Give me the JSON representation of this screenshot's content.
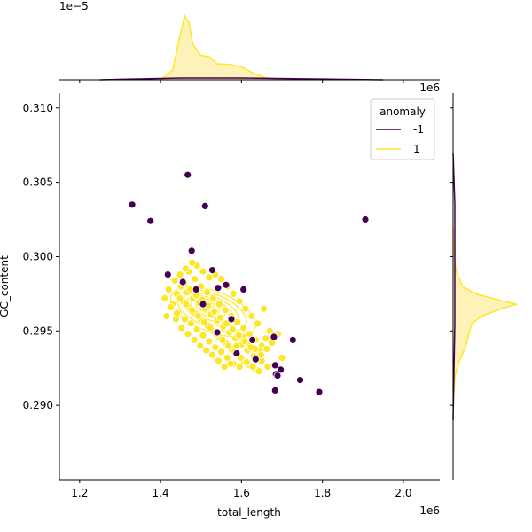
{
  "chart_data": {
    "type": "scatter",
    "xlabel": "total_length",
    "ylabel": "GC_content",
    "x_offset_label": "1e6",
    "top_offset_label": "1e−5",
    "right_offset_label": "1e6",
    "xlim": [
      1.15,
      2.09
    ],
    "ylim": [
      0.285,
      0.311
    ],
    "x_ticks": [
      {
        "value": 1.2,
        "label": "1.2"
      },
      {
        "value": 1.4,
        "label": "1.4"
      },
      {
        "value": 1.6,
        "label": "1.6"
      },
      {
        "value": 1.8,
        "label": "1.8"
      },
      {
        "value": 2.0,
        "label": "2.0"
      }
    ],
    "y_ticks": [
      {
        "value": 0.29,
        "label": "0.290"
      },
      {
        "value": 0.295,
        "label": "0.295"
      },
      {
        "value": 0.3,
        "label": "0.300"
      },
      {
        "value": 0.305,
        "label": "0.305"
      },
      {
        "value": 0.31,
        "label": "0.310"
      }
    ],
    "legend": {
      "title": "anomaly",
      "placement": "top-right",
      "entries": [
        {
          "label": "-1",
          "color": "#440154"
        },
        {
          "label": "1",
          "color": "#fde725"
        }
      ]
    },
    "colors": {
      "anomaly": "#440154",
      "normal": "#fde725",
      "kde_fill": "#fdf3b8"
    },
    "series": [
      {
        "name": "-1",
        "color": "#440154",
        "points": [
          [
            1.467,
            0.3055
          ],
          [
            1.33,
            0.3035
          ],
          [
            1.375,
            0.3024
          ],
          [
            1.51,
            0.3034
          ],
          [
            1.906,
            0.3025
          ],
          [
            1.477,
            0.3004
          ],
          [
            1.418,
            0.2988
          ],
          [
            1.528,
            0.2991
          ],
          [
            1.455,
            0.2983
          ],
          [
            1.488,
            0.2978
          ],
          [
            1.505,
            0.2968
          ],
          [
            1.562,
            0.2981
          ],
          [
            1.605,
            0.2978
          ],
          [
            1.542,
            0.2979
          ],
          [
            1.68,
            0.2946
          ],
          [
            1.727,
            0.2944
          ],
          [
            1.683,
            0.2927
          ],
          [
            1.697,
            0.2924
          ],
          [
            1.685,
            0.2921
          ],
          [
            1.689,
            0.292
          ],
          [
            1.745,
            0.2917
          ],
          [
            1.683,
            0.291
          ],
          [
            1.792,
            0.2909
          ],
          [
            1.588,
            0.2935
          ],
          [
            1.627,
            0.2944
          ],
          [
            1.635,
            0.2931
          ],
          [
            1.54,
            0.2949
          ],
          [
            1.575,
            0.2958
          ]
        ]
      },
      {
        "name": "1",
        "color": "#fde725",
        "points": [
          [
            1.47,
            0.299
          ],
          [
            1.485,
            0.2985
          ],
          [
            1.5,
            0.298
          ],
          [
            1.515,
            0.2976
          ],
          [
            1.53,
            0.2972
          ],
          [
            1.545,
            0.2968
          ],
          [
            1.56,
            0.2964
          ],
          [
            1.575,
            0.296
          ],
          [
            1.59,
            0.2956
          ],
          [
            1.605,
            0.2952
          ],
          [
            1.62,
            0.2948
          ],
          [
            1.635,
            0.2944
          ],
          [
            1.65,
            0.294
          ],
          [
            1.44,
            0.2975
          ],
          [
            1.455,
            0.297
          ],
          [
            1.47,
            0.2966
          ],
          [
            1.485,
            0.2962
          ],
          [
            1.5,
            0.2958
          ],
          [
            1.515,
            0.2954
          ],
          [
            1.53,
            0.295
          ],
          [
            1.545,
            0.2946
          ],
          [
            1.56,
            0.2942
          ],
          [
            1.575,
            0.2938
          ],
          [
            1.59,
            0.2934
          ],
          [
            1.605,
            0.293
          ],
          [
            1.62,
            0.2927
          ],
          [
            1.635,
            0.2924
          ],
          [
            1.65,
            0.293
          ],
          [
            1.43,
            0.2968
          ],
          [
            1.445,
            0.2963
          ],
          [
            1.46,
            0.2958
          ],
          [
            1.475,
            0.2955
          ],
          [
            1.49,
            0.2951
          ],
          [
            1.505,
            0.2947
          ],
          [
            1.52,
            0.2943
          ],
          [
            1.535,
            0.2939
          ],
          [
            1.55,
            0.2936
          ],
          [
            1.565,
            0.2932
          ],
          [
            1.58,
            0.2928
          ],
          [
            1.595,
            0.2926
          ],
          [
            1.42,
            0.2978
          ],
          [
            1.435,
            0.2984
          ],
          [
            1.45,
            0.298
          ],
          [
            1.465,
            0.2976
          ],
          [
            1.48,
            0.2972
          ],
          [
            1.495,
            0.2969
          ],
          [
            1.51,
            0.2965
          ],
          [
            1.525,
            0.2961
          ],
          [
            1.54,
            0.2957
          ],
          [
            1.555,
            0.2953
          ],
          [
            1.57,
            0.2949
          ],
          [
            1.585,
            0.2945
          ],
          [
            1.6,
            0.2941
          ],
          [
            1.615,
            0.2937
          ],
          [
            1.63,
            0.2933
          ],
          [
            1.645,
            0.2937
          ],
          [
            1.66,
            0.2945
          ],
          [
            1.67,
            0.295
          ],
          [
            1.655,
            0.2965
          ],
          [
            1.69,
            0.2948
          ],
          [
            1.7,
            0.2932
          ],
          [
            1.665,
            0.2926
          ],
          [
            1.64,
            0.2955
          ],
          [
            1.625,
            0.296
          ],
          [
            1.61,
            0.2965
          ],
          [
            1.595,
            0.297
          ],
          [
            1.58,
            0.2975
          ],
          [
            1.565,
            0.298
          ],
          [
            1.55,
            0.2985
          ],
          [
            1.535,
            0.2988
          ],
          [
            1.52,
            0.2986
          ],
          [
            1.505,
            0.299
          ],
          [
            1.49,
            0.2994
          ],
          [
            1.478,
            0.2996
          ],
          [
            1.462,
            0.2992
          ],
          [
            1.448,
            0.2988
          ],
          [
            1.438,
            0.2958
          ],
          [
            1.452,
            0.2952
          ],
          [
            1.468,
            0.2948
          ],
          [
            1.483,
            0.2944
          ],
          [
            1.498,
            0.294
          ],
          [
            1.513,
            0.2937
          ],
          [
            1.528,
            0.2934
          ],
          [
            1.543,
            0.293
          ],
          [
            1.558,
            0.2926
          ],
          [
            1.573,
            0.2928
          ],
          [
            1.588,
            0.294
          ],
          [
            1.603,
            0.2946
          ],
          [
            1.618,
            0.2942
          ],
          [
            1.633,
            0.2938
          ],
          [
            1.648,
            0.2934
          ],
          [
            1.662,
            0.2938
          ],
          [
            1.675,
            0.2942
          ],
          [
            1.68,
            0.2947
          ],
          [
            1.448,
            0.2972
          ],
          [
            1.463,
            0.2968
          ],
          [
            1.478,
            0.2964
          ],
          [
            1.493,
            0.296
          ],
          [
            1.508,
            0.2956
          ],
          [
            1.523,
            0.2952
          ],
          [
            1.538,
            0.2948
          ],
          [
            1.553,
            0.2944
          ],
          [
            1.568,
            0.294
          ],
          [
            1.583,
            0.2936
          ],
          [
            1.598,
            0.2932
          ],
          [
            1.613,
            0.2929
          ],
          [
            1.628,
            0.2926
          ],
          [
            1.643,
            0.2923
          ],
          [
            1.458,
            0.2982
          ],
          [
            1.473,
            0.2978
          ],
          [
            1.488,
            0.2974
          ],
          [
            1.503,
            0.2971
          ],
          [
            1.518,
            0.2967
          ],
          [
            1.533,
            0.2963
          ],
          [
            1.548,
            0.2959
          ],
          [
            1.563,
            0.2955
          ],
          [
            1.578,
            0.2951
          ],
          [
            1.593,
            0.2947
          ],
          [
            1.608,
            0.2943
          ],
          [
            1.623,
            0.2939
          ],
          [
            1.41,
            0.2972
          ],
          [
            1.425,
            0.2966
          ],
          [
            1.44,
            0.2962
          ],
          [
            1.415,
            0.296
          ]
        ]
      }
    ],
    "marginal_x_density": {
      "x": [
        1.4,
        1.43,
        1.45,
        1.46,
        1.47,
        1.48,
        1.5,
        1.52,
        1.54,
        1.57,
        1.6,
        1.63,
        1.66,
        1.7
      ],
      "density": [
        0.0,
        0.15,
        0.75,
        1.0,
        0.9,
        0.55,
        0.38,
        0.36,
        0.25,
        0.24,
        0.2,
        0.1,
        0.03,
        0.0
      ]
    },
    "marginal_y_density": {
      "y": [
        0.29,
        0.292,
        0.293,
        0.294,
        0.295,
        0.2955,
        0.296,
        0.2965,
        0.2968,
        0.297,
        0.2975,
        0.298,
        0.299,
        0.3,
        0.302
      ],
      "density": [
        0.0,
        0.03,
        0.1,
        0.2,
        0.26,
        0.3,
        0.45,
        0.75,
        1.0,
        0.8,
        0.35,
        0.15,
        0.05,
        0.02,
        0.0
      ]
    }
  }
}
